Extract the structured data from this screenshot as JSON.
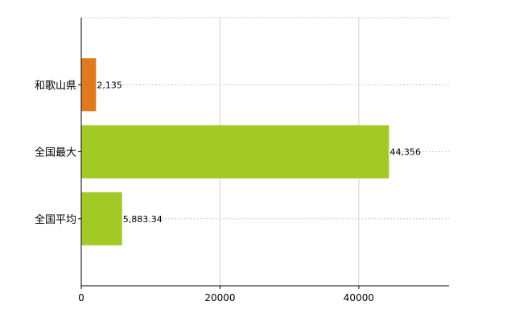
{
  "chart_data": {
    "type": "bar",
    "orientation": "horizontal",
    "categories": [
      "和歌山県",
      "全国最大",
      "全国平均"
    ],
    "values": [
      2135,
      44356,
      5883.34
    ],
    "data_labels": [
      "2,135",
      "44,356",
      "5,883.34"
    ],
    "colors": [
      "#e07a1f",
      "#a3c926",
      "#a3c926"
    ],
    "xlim": [
      0,
      53000
    ],
    "x_ticks": [
      0,
      20000,
      40000
    ],
    "x_tick_labels": [
      "0",
      "20000",
      "40000"
    ],
    "grid": true,
    "title": "",
    "xlabel": "",
    "ylabel": ""
  }
}
